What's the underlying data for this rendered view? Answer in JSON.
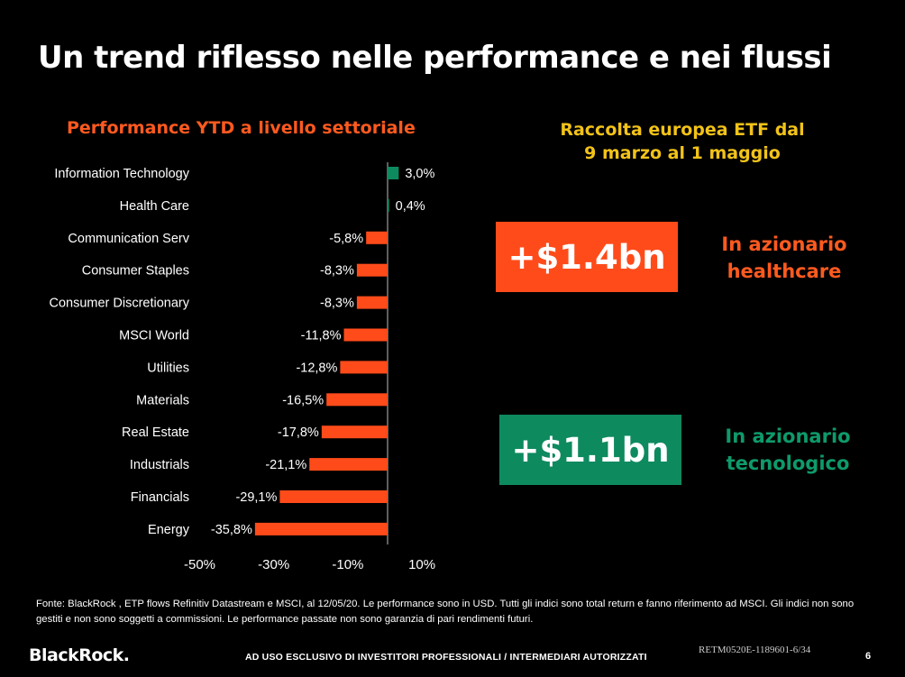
{
  "slide": {
    "title": "Un trend riflesso nelle performance e nei flussi",
    "chart_heading": "Performance YTD a livello settoriale",
    "flows_heading_line1": "Raccolta europea ETF dal",
    "flows_heading_line2": "9 marzo al 1 maggio",
    "flow1_value": "+$1.4bn",
    "flow1_label_line1": "In azionario",
    "flow1_label_line2": "healthcare",
    "flow2_value": "+$1.1bn",
    "flow2_label_line1": "In azionario",
    "flow2_label_line2": "tecnologico",
    "source": "Fonte: BlackRock , ETP flows Refinitiv Datastream e MSCI, al 12/05/20. Le performance sono in USD. Tutti gli indici sono total return e fanno riferimento ad MSCI. Gli indici non sono gestiti e non sono soggetti a commissioni. Le performance passate non sono garanzia di pari rendimenti futuri.",
    "logo": "BlackRock.",
    "disclaimer": "AD USO ESCLUSIVO DI INVESTITORI PROFESSIONALI / INTERMEDIARI AUTORIZZATI",
    "code": "RETM0520E-1189601-6/34",
    "page": "6"
  },
  "colors": {
    "orange": "#ff4b1a",
    "green": "#0e8a5f",
    "yellow": "#f2c318"
  },
  "chart_data": {
    "type": "bar",
    "orientation": "horizontal",
    "title": "Performance YTD a livello settoriale",
    "categories": [
      "Information Technology",
      "Health Care",
      "Communication Serv",
      "Consumer Staples",
      "Consumer Discretionary",
      "MSCI World",
      "Utilities",
      "Materials",
      "Real Estate",
      "Industrials",
      "Financials",
      "Energy"
    ],
    "values": [
      3.0,
      0.4,
      -5.8,
      -8.3,
      -8.3,
      -11.8,
      -12.8,
      -16.5,
      -17.8,
      -21.1,
      -29.1,
      -35.8
    ],
    "value_labels": [
      "3,0%",
      "0,4%",
      "-5,8%",
      "-8,3%",
      "-8,3%",
      "-11,8%",
      "-12,8%",
      "-16,5%",
      "-17,8%",
      "-21,1%",
      "-29,1%",
      "-35,8%"
    ],
    "xticks": [
      -50,
      -30,
      -10,
      10
    ],
    "xtick_labels": [
      "-50%",
      "-30%",
      "-10%",
      "10%"
    ],
    "xlim": [
      -50,
      10
    ],
    "positive_color": "#0e8a5f",
    "negative_color": "#ff4b1a"
  }
}
